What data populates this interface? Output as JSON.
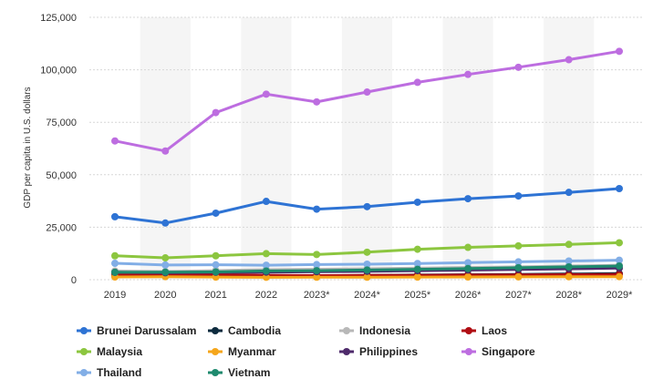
{
  "chart_data": {
    "type": "line",
    "title": "",
    "xlabel": "",
    "ylabel": "GDP per capita in U.S. dollars",
    "ylim": [
      0,
      125000
    ],
    "yticks": [
      0,
      25000,
      50000,
      75000,
      100000,
      125000
    ],
    "ytick_labels": [
      "0",
      "25,000",
      "50,000",
      "75,000",
      "100,000",
      "125,000"
    ],
    "x": [
      "2019",
      "2020",
      "2021",
      "2022",
      "2023*",
      "2024*",
      "2025*",
      "2026*",
      "2027*",
      "2028*",
      "2029*"
    ],
    "grid": true,
    "legend_position": "bottom",
    "series": [
      {
        "name": "Brunei Darussalam",
        "color": "#2e73d4",
        "values": [
          30000,
          27000,
          31700,
          37300,
          33600,
          34800,
          36900,
          38600,
          39900,
          41600,
          43400
        ]
      },
      {
        "name": "Cambodia",
        "color": "#0d2b3e",
        "values": [
          1650,
          1600,
          1650,
          1780,
          1870,
          2000,
          2200,
          2350,
          2500,
          2700,
          2900
        ]
      },
      {
        "name": "Indonesia",
        "color": "#b8b8b8",
        "values": [
          4150,
          3900,
          4350,
          4780,
          5000,
          5200,
          5500,
          5800,
          6100,
          6500,
          6900
        ]
      },
      {
        "name": "Laos",
        "color": "#b00d13",
        "values": [
          2600,
          2600,
          2500,
          2050,
          1950,
          2050,
          2100,
          2200,
          2300,
          2400,
          2500
        ]
      },
      {
        "name": "Malaysia",
        "color": "#8cc63f",
        "values": [
          11400,
          10400,
          11400,
          12400,
          12000,
          13100,
          14500,
          15400,
          16100,
          16800,
          17600
        ]
      },
      {
        "name": "Myanmar",
        "color": "#f5a61b",
        "values": [
          1300,
          1450,
          1250,
          1150,
          1200,
          1200,
          1250,
          1300,
          1350,
          1400,
          1450
        ]
      },
      {
        "name": "Philippines",
        "color": "#4e2a6b",
        "values": [
          3500,
          3300,
          3500,
          3600,
          3800,
          4000,
          4300,
          4600,
          4900,
          5200,
          5500
        ]
      },
      {
        "name": "Singapore",
        "color": "#bd6de0",
        "values": [
          66100,
          61300,
          79600,
          88400,
          84700,
          89400,
          94000,
          97800,
          101200,
          104800,
          108800
        ]
      },
      {
        "name": "Thailand",
        "color": "#82aee6",
        "values": [
          7800,
          7000,
          7100,
          6900,
          7200,
          7400,
          7700,
          8100,
          8500,
          8900,
          9300
        ]
      },
      {
        "name": "Vietnam",
        "color": "#1e8a6e",
        "values": [
          3500,
          3600,
          3700,
          4150,
          4300,
          4600,
          4950,
          5300,
          5700,
          6100,
          6500
        ]
      }
    ]
  }
}
